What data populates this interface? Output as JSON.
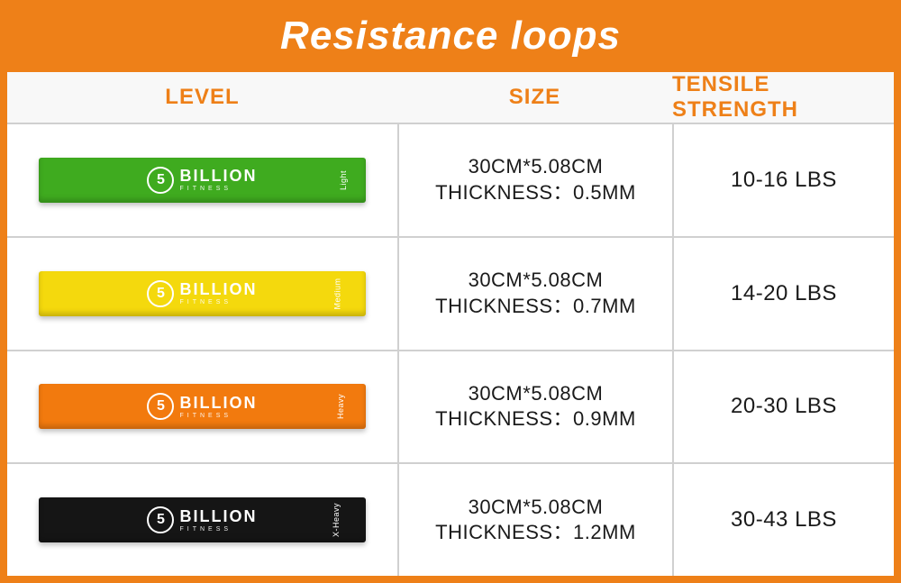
{
  "title": "Resistance loops",
  "colors": {
    "page_bg": "#ee8018",
    "table_bg": "#f8f8f8",
    "cell_bg": "#ffffff",
    "border": "#d0d0d0",
    "header_text": "#ee8018",
    "data_text": "#1a1a1a"
  },
  "columns": {
    "level": "LEVEL",
    "size": "SIZE",
    "tensile": "TENSILE STRENGTH"
  },
  "brand": {
    "logo_digit": "5",
    "name": "BILLION",
    "sub": "FITNESS"
  },
  "rows": [
    {
      "level_tag": "Light",
      "band_color": "#3fab1f",
      "size_line1": "30CM*5.08CM",
      "size_line2": "THICKNESS：0.5MM",
      "tensile": "10-16 LBS"
    },
    {
      "level_tag": "Medium",
      "band_color": "#f4d90d",
      "size_line1": "30CM*5.08CM",
      "size_line2": "THICKNESS：0.7MM",
      "tensile": "14-20 LBS"
    },
    {
      "level_tag": "Heavy",
      "band_color": "#f27a0e",
      "size_line1": "30CM*5.08CM",
      "size_line2": "THICKNESS：0.9MM",
      "tensile": "20-30 LBS"
    },
    {
      "level_tag": "X-Heavy",
      "band_color": "#151515",
      "size_line1": "30CM*5.08CM",
      "size_line2": "THICKNESS：1.2MM",
      "tensile": "30-43 LBS"
    }
  ]
}
